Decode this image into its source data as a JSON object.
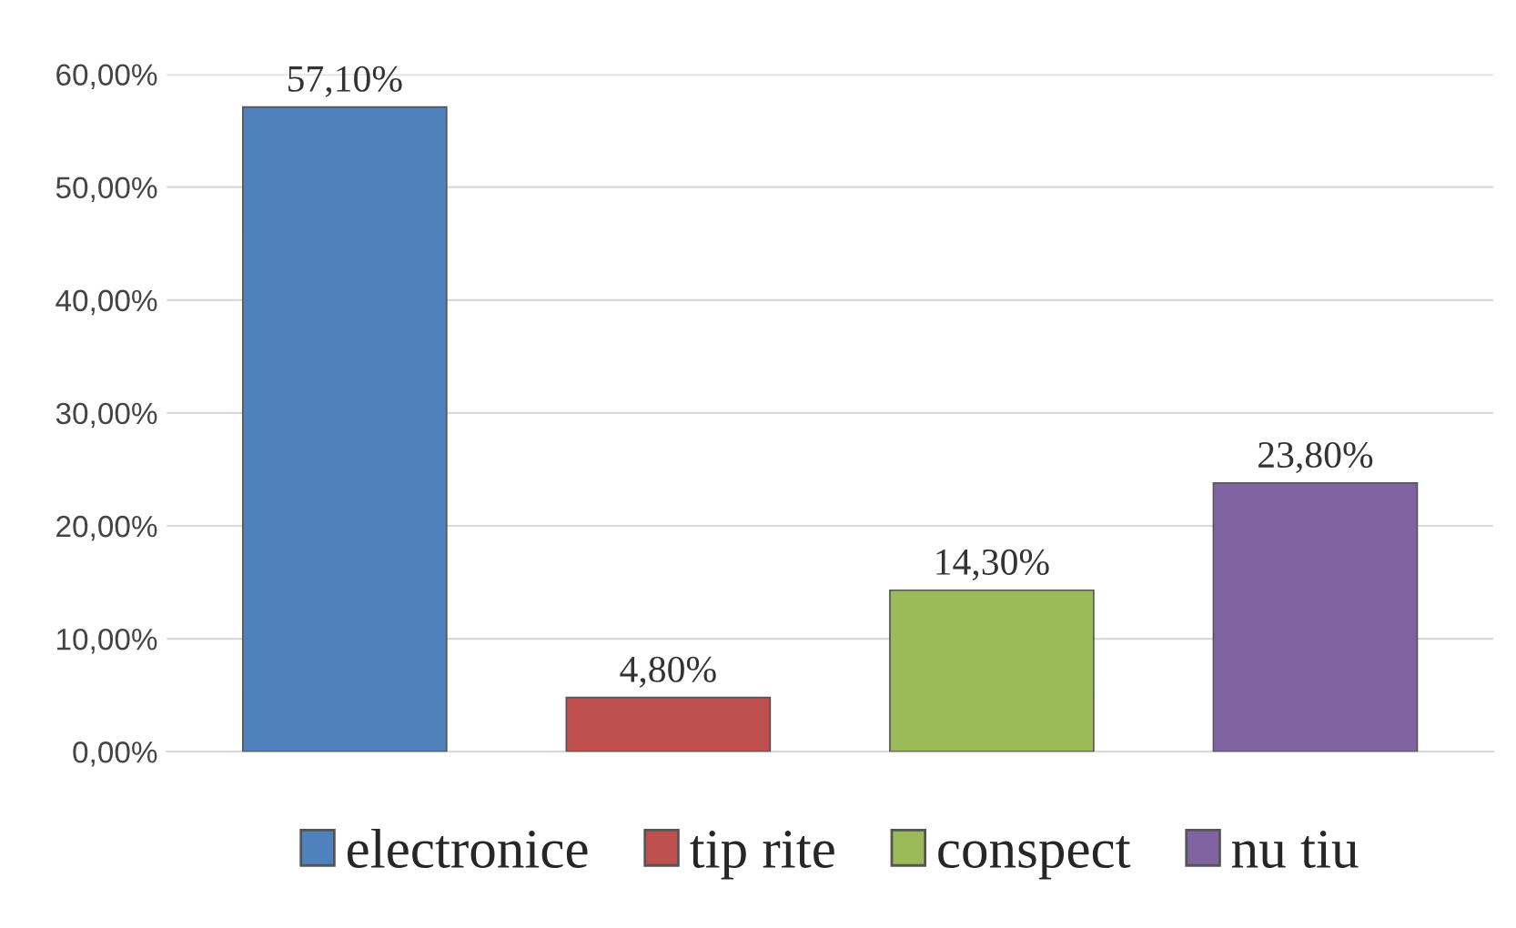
{
  "chart_data": {
    "type": "bar",
    "categories": [
      null,
      null,
      null,
      null
    ],
    "series": [
      {
        "name": "electronice",
        "color": "#4f81bd",
        "values": [
          57.1,
          null,
          null,
          null
        ],
        "value_labels": [
          "57,10%",
          null,
          null,
          null
        ]
      },
      {
        "name": "tip rite",
        "color": "#c0504d",
        "values": [
          null,
          4.8,
          null,
          null
        ],
        "value_labels": [
          null,
          "4,80%",
          null,
          null
        ]
      },
      {
        "name": "conspect",
        "color": "#9bbb59",
        "values": [
          null,
          null,
          14.3,
          null
        ],
        "value_labels": [
          null,
          null,
          "14,30%",
          null
        ]
      },
      {
        "name": "nu tiu",
        "color": "#8064a2",
        "values": [
          null,
          null,
          null,
          23.8
        ],
        "value_labels": [
          null,
          null,
          null,
          "23,80%"
        ]
      }
    ],
    "ylim": [
      0,
      60
    ],
    "yticks": [
      {
        "value": 0,
        "label": "0,00%"
      },
      {
        "value": 10,
        "label": "10,00%"
      },
      {
        "value": 20,
        "label": "20,00%"
      },
      {
        "value": 30,
        "label": "30,00%"
      },
      {
        "value": 40,
        "label": "40,00%"
      },
      {
        "value": 50,
        "label": "50,00%"
      },
      {
        "value": 60,
        "label": "60,00%"
      }
    ],
    "grid": "y",
    "legend": "bottom"
  }
}
